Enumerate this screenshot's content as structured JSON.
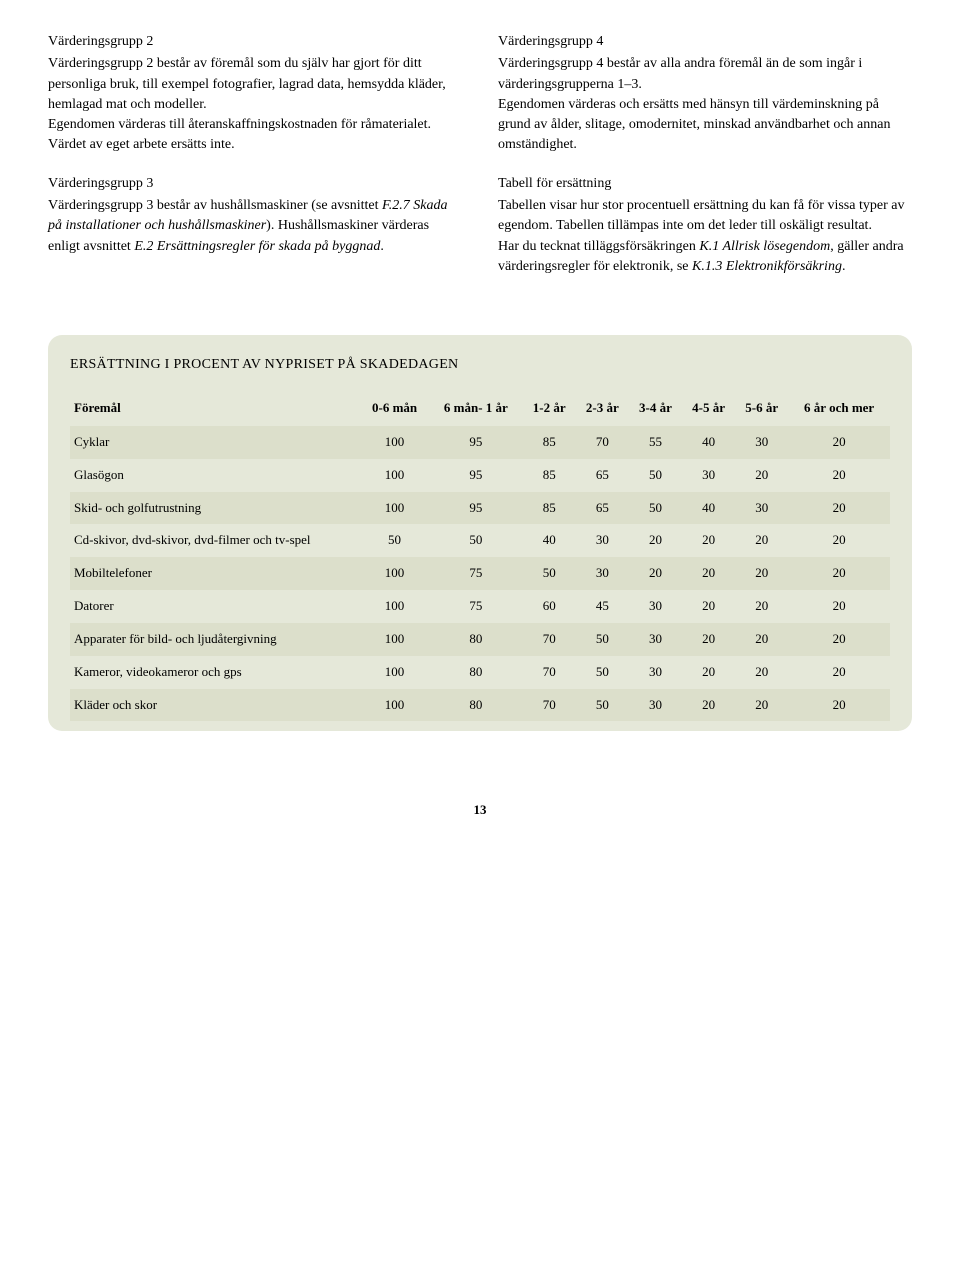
{
  "left": {
    "g2_heading": "Värderingsgrupp 2",
    "g2_body": "Värderingsgrupp 2 består av föremål som du själv har gjort för ditt personliga bruk, till exempel fotografier, lagrad data, hemsydda kläder, hemlagad mat och modeller.",
    "g2_body2": "Egendomen värderas till återanskaffningskostnaden för råmaterialet. Värdet av eget arbete ersätts inte.",
    "g3_heading": "Värderingsgrupp 3",
    "g3_body_a": "Värderingsgrupp 3 består av hushållsmaskiner (se avsnittet ",
    "g3_body_it1": "F.2.7 Skada på installationer och hushållsmaskiner",
    "g3_body_b": "). Hushållsmaskiner värderas enligt avsnittet ",
    "g3_body_it2": "E.2 Ersättningsregler för skada på byggnad",
    "g3_body_c": "."
  },
  "right": {
    "g4_heading": "Värderingsgrupp 4",
    "g4_body": "Värderingsgrupp 4 består av alla andra föremål än de som ingår i värderingsgrupperna 1–3.",
    "g4_body2": "Egendomen värderas och ersätts med hänsyn till värdeminskning på grund av ålder, slitage, omodernitet, minskad användbarhet och annan omständighet.",
    "tbl_heading": "Tabell för ersättning",
    "tbl_body1": "Tabellen visar hur stor procentuell ersättning du kan få för vissa typer av egendom. Tabellen tillämpas inte om det leder till oskäligt resultat.",
    "tbl_body2_a": "Har du tecknat tilläggsförsäkringen ",
    "tbl_body2_it1": "K.1 Allrisk lösegendom",
    "tbl_body2_b": ", gäller andra värderingsregler för elektronik, se ",
    "tbl_body2_it2": "K.1.3 Elektronikförsäkring",
    "tbl_body2_c": "."
  },
  "table": {
    "title": "ERSÄTTNING I PROCENT AV NYPRISET PÅ SKADEDAGEN",
    "columns": [
      "Föremål",
      "0-6 mån",
      "6 mån- 1 år",
      "1-2 år",
      "2-3 år",
      "3-4 år",
      "4-5 år",
      "5-6 år",
      "6 år och mer"
    ],
    "rows": [
      {
        "label": "Cyklar",
        "vals": [
          100,
          95,
          85,
          70,
          55,
          40,
          30,
          20
        ],
        "shade": true
      },
      {
        "label": "Glasögon",
        "vals": [
          100,
          95,
          85,
          65,
          50,
          30,
          20,
          20
        ],
        "shade": false
      },
      {
        "label": "Skid- och golfutrustning",
        "vals": [
          100,
          95,
          85,
          65,
          50,
          40,
          30,
          20
        ],
        "shade": true
      },
      {
        "label": "Cd-skivor, dvd-skivor, dvd-filmer och tv-spel",
        "vals": [
          50,
          50,
          40,
          30,
          20,
          20,
          20,
          20
        ],
        "shade": false
      },
      {
        "label": "Mobiltelefoner",
        "vals": [
          100,
          75,
          50,
          30,
          20,
          20,
          20,
          20
        ],
        "shade": true
      },
      {
        "label": "Datorer",
        "vals": [
          100,
          75,
          60,
          45,
          30,
          20,
          20,
          20
        ],
        "shade": false
      },
      {
        "label": "Apparater för bild- och ljudåtergivning",
        "vals": [
          100,
          80,
          70,
          50,
          30,
          20,
          20,
          20
        ],
        "shade": true
      },
      {
        "label": "Kameror, videokameror och gps",
        "vals": [
          100,
          80,
          70,
          50,
          30,
          20,
          20,
          20
        ],
        "shade": false
      },
      {
        "label": "Kläder och skor",
        "vals": [
          100,
          80,
          70,
          50,
          30,
          20,
          20,
          20
        ],
        "shade": true
      }
    ]
  },
  "page_number": "13"
}
